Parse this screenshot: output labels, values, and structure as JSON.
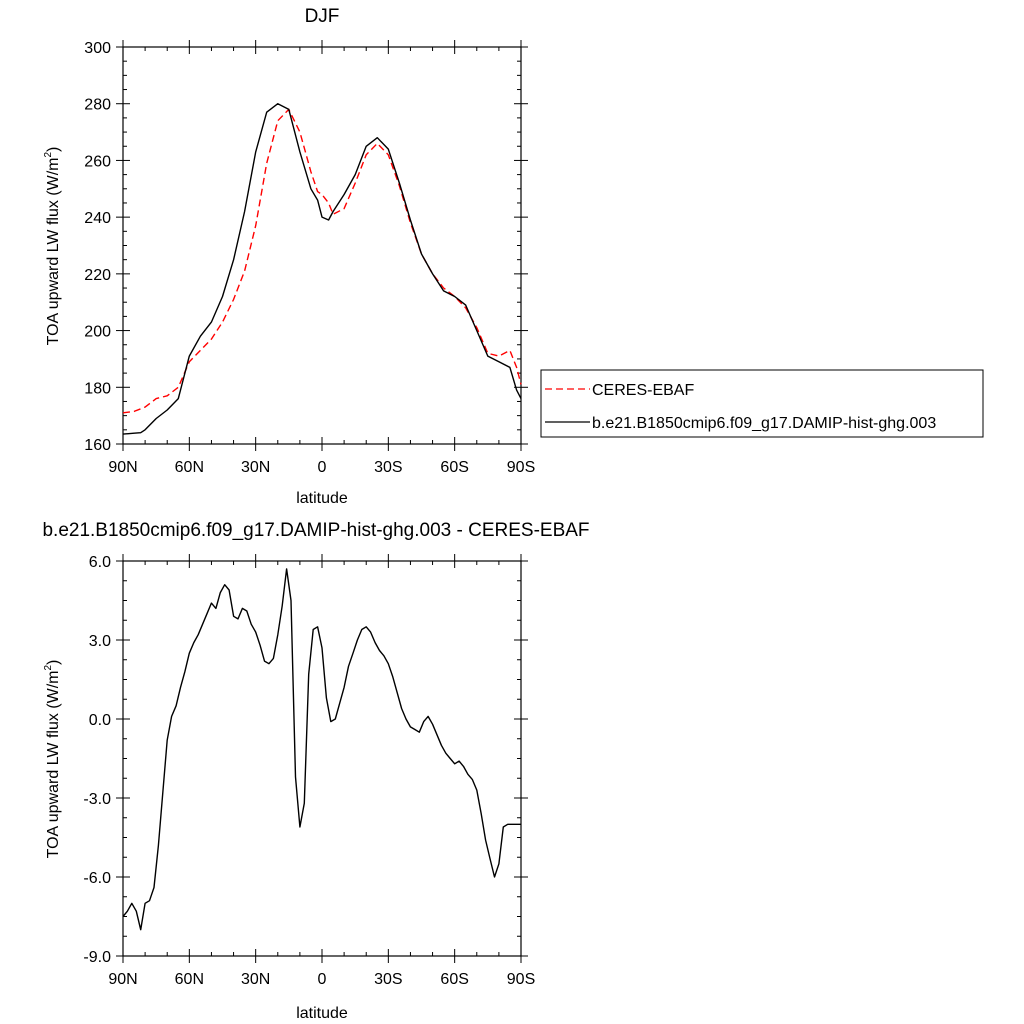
{
  "chart_data": [
    {
      "type": "line",
      "title": "DJF",
      "xlabel": "latitude",
      "ylabel": "TOA upward LW flux (W/m",
      "ylabel_sup": "2",
      "ylabel_end": ")",
      "xlim": [
        90,
        -90
      ],
      "ylim": [
        160,
        300
      ],
      "xticks": [
        90,
        60,
        30,
        0,
        -30,
        -60,
        -90
      ],
      "xtick_labels": [
        "90N",
        "60N",
        "30N",
        "0",
        "30S",
        "60S",
        "90S"
      ],
      "yticks": [
        160,
        180,
        200,
        220,
        240,
        260,
        280,
        300
      ],
      "ytick_labels": [
        "160",
        "180",
        "200",
        "220",
        "240",
        "260",
        "280",
        "300"
      ],
      "legend": "right",
      "series": [
        {
          "name": "CERES-EBAF",
          "color": "#ff0000",
          "dash": "dashed",
          "x": [
            90,
            85,
            80,
            75,
            70,
            65,
            60,
            55,
            50,
            45,
            40,
            35,
            30,
            25,
            20,
            15,
            10,
            5,
            2,
            0,
            -3,
            -5,
            -10,
            -15,
            -20,
            -25,
            -30,
            -35,
            -40,
            -45,
            -50,
            -55,
            -60,
            -65,
            -70,
            -75,
            -80,
            -85,
            -88,
            -90
          ],
          "y": [
            171,
            171.5,
            173,
            176,
            177,
            180,
            189,
            193,
            197,
            203,
            211,
            221,
            237,
            259,
            274,
            278,
            270,
            256,
            249,
            248,
            245,
            241,
            243,
            252,
            262,
            266,
            262,
            251,
            238,
            227,
            220,
            215,
            212,
            208,
            201,
            192,
            191,
            193,
            187,
            181
          ]
        },
        {
          "name": "b.e21.B1850cmip6.f09_g17.DAMIP-hist-ghg.003",
          "color": "#000000",
          "dash": "solid",
          "x": [
            90,
            85,
            82,
            80,
            75,
            70,
            65,
            60,
            55,
            50,
            45,
            40,
            35,
            30,
            25,
            20,
            15,
            10,
            5,
            2,
            0,
            -3,
            -5,
            -10,
            -15,
            -20,
            -25,
            -30,
            -35,
            -40,
            -45,
            -50,
            -55,
            -60,
            -65,
            -70,
            -75,
            -80,
            -85,
            -88,
            -90
          ],
          "y": [
            163.5,
            163.8,
            164,
            165,
            169,
            172,
            176,
            191,
            198,
            203,
            212,
            225,
            242,
            263,
            277,
            280,
            278,
            263,
            250,
            246,
            240,
            239,
            242,
            248,
            255,
            265,
            268,
            264,
            252,
            239,
            227,
            220,
            214,
            212,
            209,
            200,
            191,
            189,
            187,
            179,
            176
          ]
        }
      ]
    },
    {
      "type": "line",
      "title": "b.e21.B1850cmip6.f09_g17.DAMIP-hist-ghg.003 - CERES-EBAF",
      "xlabel": "latitude",
      "ylabel": "TOA upward LW flux (W/m",
      "ylabel_sup": "2",
      "ylabel_end": ")",
      "xlim": [
        90,
        -90
      ],
      "ylim": [
        -9,
        6
      ],
      "xticks": [
        90,
        60,
        30,
        0,
        -30,
        -60,
        -90
      ],
      "xtick_labels": [
        "90N",
        "60N",
        "30N",
        "0",
        "30S",
        "60S",
        "90S"
      ],
      "yticks": [
        -9,
        -6,
        -3,
        0,
        3,
        6
      ],
      "ytick_labels": [
        "-9.0",
        "-6.0",
        "-3.0",
        "0.0",
        "3.0",
        "6.0"
      ],
      "series": [
        {
          "color": "#000000",
          "dash": "solid",
          "x": [
            90,
            88,
            86,
            84,
            82,
            80,
            78,
            76,
            74,
            72,
            70,
            68,
            66,
            64,
            62,
            60,
            58,
            56,
            54,
            52,
            50,
            48,
            46,
            44,
            42,
            40,
            38,
            36,
            34,
            32,
            30,
            28,
            26,
            24,
            22,
            20,
            18,
            16,
            14,
            12,
            10,
            8,
            6,
            4,
            2,
            0,
            -2,
            -4,
            -6,
            -8,
            -10,
            -12,
            -14,
            -16,
            -18,
            -20,
            -22,
            -24,
            -26,
            -28,
            -30,
            -32,
            -34,
            -36,
            -38,
            -40,
            -42,
            -44,
            -46,
            -48,
            -50,
            -52,
            -54,
            -56,
            -58,
            -60,
            -62,
            -64,
            -66,
            -68,
            -70,
            -72,
            -74,
            -76,
            -78,
            -80,
            -82,
            -84,
            -86,
            -88,
            -90
          ],
          "y": [
            -7.5,
            -7.3,
            -7.0,
            -7.3,
            -8.0,
            -7.0,
            -6.9,
            -6.4,
            -4.8,
            -2.8,
            -0.8,
            0.1,
            0.5,
            1.2,
            1.8,
            2.5,
            2.9,
            3.2,
            3.6,
            4.0,
            4.4,
            4.2,
            4.8,
            5.1,
            4.9,
            3.9,
            3.8,
            4.2,
            4.1,
            3.6,
            3.3,
            2.8,
            2.2,
            2.1,
            2.3,
            3.2,
            4.3,
            5.7,
            4.5,
            -2.2,
            -4.1,
            -3.2,
            1.7,
            3.4,
            3.5,
            2.7,
            0.8,
            -0.1,
            0.0,
            0.6,
            1.2,
            2.0,
            2.5,
            3.0,
            3.4,
            3.5,
            3.3,
            2.9,
            2.6,
            2.4,
            2.1,
            1.6,
            1.0,
            0.4,
            0.0,
            -0.3,
            -0.4,
            -0.5,
            -0.1,
            0.1,
            -0.2,
            -0.6,
            -1.0,
            -1.3,
            -1.5,
            -1.7,
            -1.6,
            -1.8,
            -2.1,
            -2.3,
            -2.7,
            -3.6,
            -4.6,
            -5.3,
            -6.0,
            -5.5,
            -4.1,
            -4.0,
            -4.0,
            -4.0,
            -4.0
          ]
        }
      ]
    }
  ]
}
